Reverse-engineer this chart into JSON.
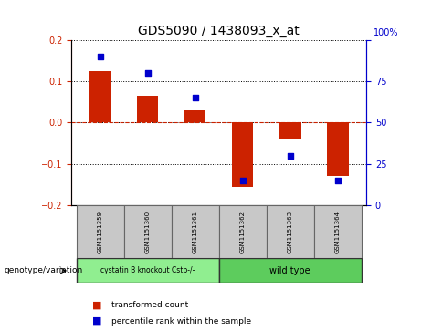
{
  "title": "GDS5090 / 1438093_x_at",
  "samples": [
    "GSM1151359",
    "GSM1151360",
    "GSM1151361",
    "GSM1151362",
    "GSM1151363",
    "GSM1151364"
  ],
  "bar_values": [
    0.125,
    0.065,
    0.03,
    -0.155,
    -0.04,
    -0.13
  ],
  "dot_values": [
    90,
    80,
    65,
    15,
    30,
    15
  ],
  "bar_color": "#cc2200",
  "dot_color": "#0000cc",
  "ylim_left": [
    -0.2,
    0.2
  ],
  "ylim_right": [
    0,
    100
  ],
  "yticks_left": [
    -0.2,
    -0.1,
    0.0,
    0.1,
    0.2
  ],
  "yticks_right": [
    0,
    25,
    50,
    75,
    100
  ],
  "group1_label": "cystatin B knockout Cstb-/-",
  "group2_label": "wild type",
  "group1_color": "#90ee90",
  "group2_color": "#5dcc5d",
  "group1_indices": [
    0,
    1,
    2
  ],
  "group2_indices": [
    3,
    4,
    5
  ],
  "label_bar": "transformed count",
  "label_dot": "percentile rank within the sample",
  "bottom_label": "genotype/variation",
  "bg_color": "#c8c8c8",
  "plot_bg": "#ffffff"
}
